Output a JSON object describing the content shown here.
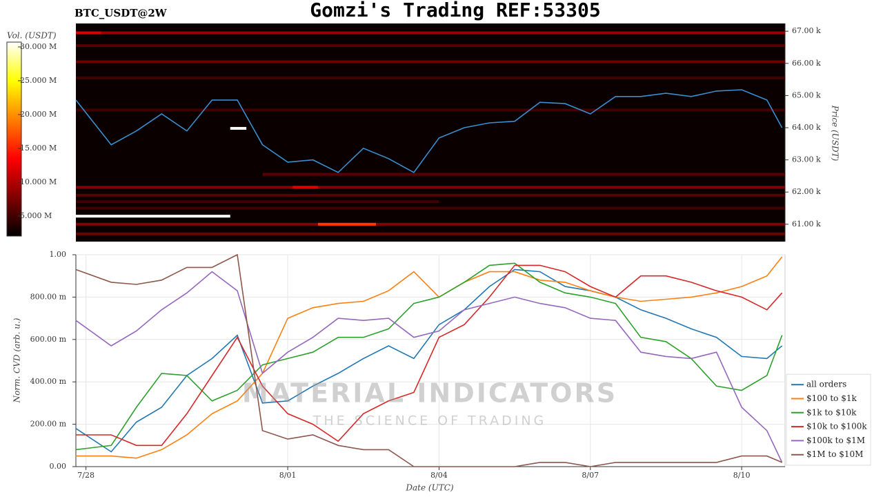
{
  "title": "Gomzi's Trading REF:53305",
  "chart_data": [
    {
      "type": "heatmap",
      "subtitle": "BTC_USDT@2W",
      "ylabel": "Price (USDT)",
      "x": [
        -0.2,
        0.5,
        1,
        1.5,
        2,
        2.5,
        3,
        3.5,
        4,
        4.5,
        5,
        5.5,
        6,
        6.5,
        7,
        7.5,
        8,
        8.5,
        9,
        9.5,
        10,
        10.5,
        11,
        11.5,
        12,
        12.5,
        13,
        13.5,
        13.8
      ],
      "xlim": [
        -0.2,
        13.86
      ],
      "ylim": [
        60460,
        67240
      ],
      "yticks": [
        {
          "value": 61000,
          "label": "61.00 k"
        },
        {
          "value": 62000,
          "label": "62.00 k"
        },
        {
          "value": 63000,
          "label": "63.00 k"
        },
        {
          "value": 64000,
          "label": "64.00 k"
        },
        {
          "value": 65000,
          "label": "65.00 k"
        },
        {
          "value": 66000,
          "label": "66.00 k"
        },
        {
          "value": 67000,
          "label": "67.00 k"
        }
      ],
      "price_line": {
        "color": "#3a8fd0",
        "values": [
          64860,
          63470,
          63900,
          64430,
          63900,
          64860,
          64860,
          63470,
          62930,
          63000,
          62610,
          63360,
          63040,
          62610,
          63680,
          64000,
          64150,
          64200,
          64790,
          64750,
          64430,
          64970,
          64970,
          65070,
          64970,
          65140,
          65180,
          64860,
          64000
        ]
      },
      "colormap": "hot",
      "colorbar": {
        "label": "Vol. (USDT)",
        "lim": [
          2040000,
          30710000
        ],
        "ticks": [
          {
            "value": 5000000,
            "label": "5.000 M"
          },
          {
            "value": 10000000,
            "label": "10.000 M"
          },
          {
            "value": 15000000,
            "label": "15.000 M"
          },
          {
            "value": 20000000,
            "label": "20.000 M"
          },
          {
            "value": 25000000,
            "label": "25.000 M"
          },
          {
            "value": 30000000,
            "label": "30.000 M"
          }
        ]
      },
      "heatmap": {
        "price": [
          66950,
          66950,
          66550,
          66050,
          65550,
          64550,
          62550,
          62150,
          62150,
          61900,
          61700,
          61500,
          61250,
          61000,
          61000,
          60700,
          63980
        ],
        "volume": [
          9000000,
          12000000,
          6000000,
          7000000,
          5000000,
          5000000,
          6000000,
          8000000,
          12000000,
          6000000,
          5000000,
          5000000,
          31000000,
          8000000,
          16000000,
          7000000,
          31000000
        ],
        "start": [
          -0.2,
          -0.2,
          -0.2,
          -0.2,
          -0.2,
          -0.2,
          3.5,
          -0.2,
          4.1,
          -0.2,
          -0.2,
          -0.2,
          -0.2,
          -0.2,
          4.6,
          -0.2,
          2.86
        ],
        "end": [
          13.86,
          0.3,
          13.86,
          13.86,
          13.86,
          13.86,
          13.86,
          13.86,
          4.6,
          13.86,
          7,
          13.86,
          2.86,
          13.86,
          5.75,
          13.86,
          3.18
        ]
      }
    },
    {
      "type": "line",
      "xlabel": "Date (UTC)",
      "ylabel": "Norm. CVD (arb. u.)",
      "grid": true,
      "legend": "lower right",
      "watermark": [
        "MATERIAL INDICATORS",
        "THE SCIENCE OF TRADING"
      ],
      "x": [
        -0.2,
        0.5,
        1,
        1.5,
        2,
        2.5,
        3,
        3.5,
        4,
        4.5,
        5,
        5.5,
        6,
        6.5,
        7,
        7.5,
        8,
        8.5,
        9,
        9.5,
        10,
        10.5,
        11,
        11.5,
        12,
        12.5,
        13,
        13.5,
        13.8
      ],
      "xlim": [
        -0.2,
        13.86
      ],
      "xticks": [
        {
          "value": 0,
          "label": "7/28"
        },
        {
          "value": 4,
          "label": "8/01"
        },
        {
          "value": 7,
          "label": "8/04"
        },
        {
          "value": 10,
          "label": "8/07"
        },
        {
          "value": 13,
          "label": "8/10"
        }
      ],
      "ylim": [
        0,
        1
      ],
      "yticks": [
        {
          "value": 0,
          "label": "0.00"
        },
        {
          "value": 0.2,
          "label": "200.00 m"
        },
        {
          "value": 0.4,
          "label": "400.00 m"
        },
        {
          "value": 0.6,
          "label": "600.00 m"
        },
        {
          "value": 0.8,
          "label": "800.00 m"
        },
        {
          "value": 1,
          "label": "1.00"
        }
      ],
      "series": [
        {
          "name": "all orders",
          "color": "#1f77b4",
          "values": [
            0.18,
            0.07,
            0.21,
            0.28,
            0.43,
            0.51,
            0.62,
            0.3,
            0.31,
            0.38,
            0.44,
            0.51,
            0.57,
            0.51,
            0.67,
            0.74,
            0.85,
            0.93,
            0.92,
            0.85,
            0.83,
            0.8,
            0.74,
            0.7,
            0.65,
            0.61,
            0.52,
            0.51,
            0.57
          ]
        },
        {
          "name": "$100 to $1k",
          "color": "#ff7f0e",
          "values": [
            0.05,
            0.05,
            0.04,
            0.08,
            0.15,
            0.25,
            0.31,
            0.44,
            0.7,
            0.75,
            0.77,
            0.78,
            0.83,
            0.92,
            0.8,
            0.87,
            0.92,
            0.92,
            0.88,
            0.87,
            0.83,
            0.8,
            0.78,
            0.79,
            0.8,
            0.82,
            0.85,
            0.9,
            0.99
          ]
        },
        {
          "name": "$1k to $10k",
          "color": "#2ca02c",
          "values": [
            0.08,
            0.1,
            0.28,
            0.44,
            0.43,
            0.31,
            0.36,
            0.48,
            0.51,
            0.54,
            0.61,
            0.61,
            0.65,
            0.77,
            0.8,
            0.87,
            0.95,
            0.96,
            0.87,
            0.82,
            0.8,
            0.77,
            0.61,
            0.59,
            0.51,
            0.38,
            0.36,
            0.43,
            0.62
          ]
        },
        {
          "name": "$10k to $100k",
          "color": "#d62728",
          "values": [
            0.15,
            0.15,
            0.1,
            0.1,
            0.25,
            0.43,
            0.61,
            0.38,
            0.25,
            0.2,
            0.12,
            0.25,
            0.31,
            0.35,
            0.61,
            0.67,
            0.8,
            0.95,
            0.95,
            0.92,
            0.85,
            0.8,
            0.9,
            0.9,
            0.87,
            0.83,
            0.8,
            0.74,
            0.82
          ]
        },
        {
          "name": "$100k to $1M",
          "color": "#9467bd",
          "values": [
            0.69,
            0.57,
            0.64,
            0.74,
            0.82,
            0.92,
            0.83,
            0.44,
            0.54,
            0.61,
            0.7,
            0.69,
            0.7,
            0.61,
            0.64,
            0.74,
            0.77,
            0.8,
            0.77,
            0.75,
            0.7,
            0.69,
            0.54,
            0.52,
            0.51,
            0.54,
            0.28,
            0.17,
            0.02
          ]
        },
        {
          "name": "$1M to $10M",
          "color": "#8c564b",
          "values": [
            0.93,
            0.87,
            0.86,
            0.88,
            0.94,
            0.94,
            1,
            0.17,
            0.13,
            0.15,
            0.1,
            0.08,
            0.08,
            0,
            0,
            0,
            0,
            0,
            0.02,
            0.02,
            0,
            0.02,
            0.02,
            0.02,
            0.02,
            0.02,
            0.05,
            0.05,
            0.02
          ]
        }
      ]
    }
  ]
}
